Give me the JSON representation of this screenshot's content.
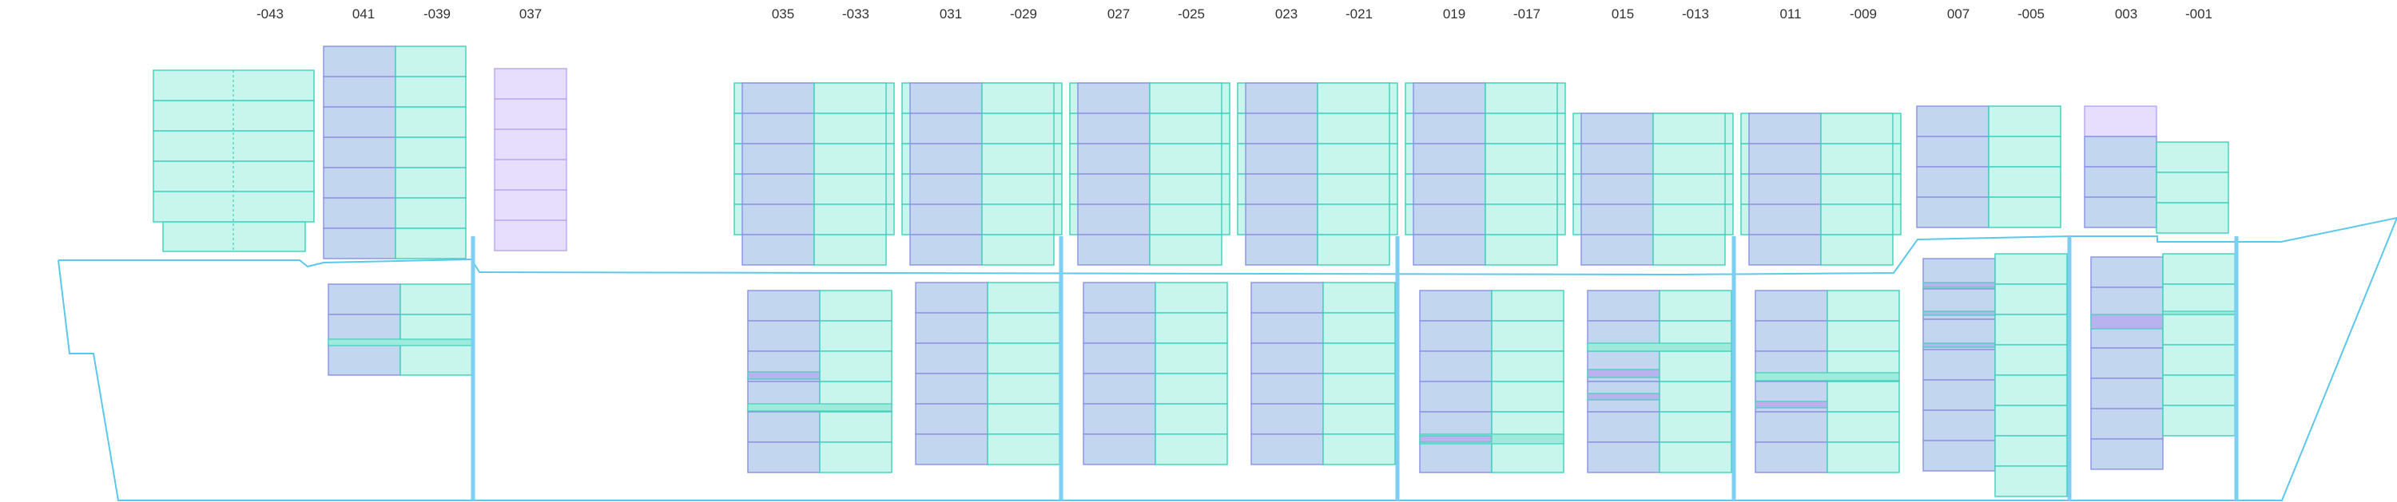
{
  "bay_labels": [
    "-043",
    "041",
    "-039",
    "037",
    "035",
    "-033",
    "031",
    "-029",
    "027",
    "-025",
    "023",
    "-021",
    "019",
    "-017",
    "015",
    "-013",
    "011",
    "-009",
    "007",
    "-005",
    "003",
    "-001"
  ],
  "colors": {
    "hull": "#5bc8ec",
    "bulkhead": "#7ccff3",
    "cell_teal_fill": "#c8f5ec",
    "cell_teal_stroke": "#3ed0bc",
    "cell_blue_fill": "#c3d6ef",
    "cell_blue_stroke": "#8a90e4",
    "cell_lilac_fill": "#e6defc",
    "cell_lilac_stroke": "#b8a6ee",
    "highlight_teal": "#9eeadb",
    "highlight_violet": "#b9b2ee",
    "label_text": "#333333"
  }
}
